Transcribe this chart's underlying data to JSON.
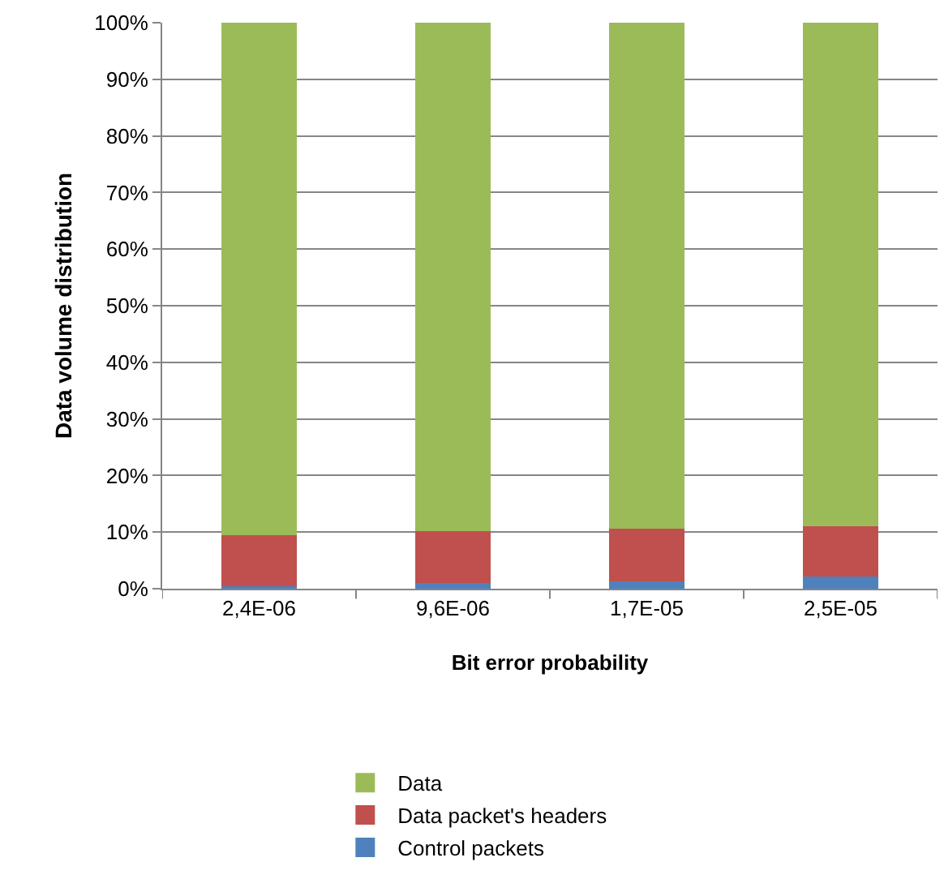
{
  "chart_data": {
    "type": "bar",
    "stacked": true,
    "xlabel": "Bit error probability",
    "ylabel": "Data volume distribution",
    "categories": [
      "2,4E-06",
      "9,6E-06",
      "1,7E-05",
      "2,5E-05"
    ],
    "series": [
      {
        "name": "Control packets",
        "color": "#4f81bd",
        "values": [
          0.5,
          1.0,
          1.3,
          2.2
        ]
      },
      {
        "name": "Data packet's headers",
        "color": "#c0504d",
        "values": [
          8.9,
          9.2,
          9.3,
          8.9
        ]
      },
      {
        "name": "Data",
        "color": "#9bbb59",
        "values": [
          90.6,
          89.8,
          89.4,
          88.9
        ]
      }
    ],
    "ylim": [
      0,
      100
    ],
    "yticks": [
      {
        "value": 0,
        "label": "0%"
      },
      {
        "value": 10,
        "label": "10%"
      },
      {
        "value": 20,
        "label": "20%"
      },
      {
        "value": 30,
        "label": "30%"
      },
      {
        "value": 40,
        "label": "40%"
      },
      {
        "value": 50,
        "label": "50%"
      },
      {
        "value": 60,
        "label": "60%"
      },
      {
        "value": 70,
        "label": "70%"
      },
      {
        "value": 80,
        "label": "80%"
      },
      {
        "value": 90,
        "label": "90%"
      },
      {
        "value": 100,
        "label": "100%"
      }
    ],
    "grid": "y",
    "legend": "bottom"
  }
}
